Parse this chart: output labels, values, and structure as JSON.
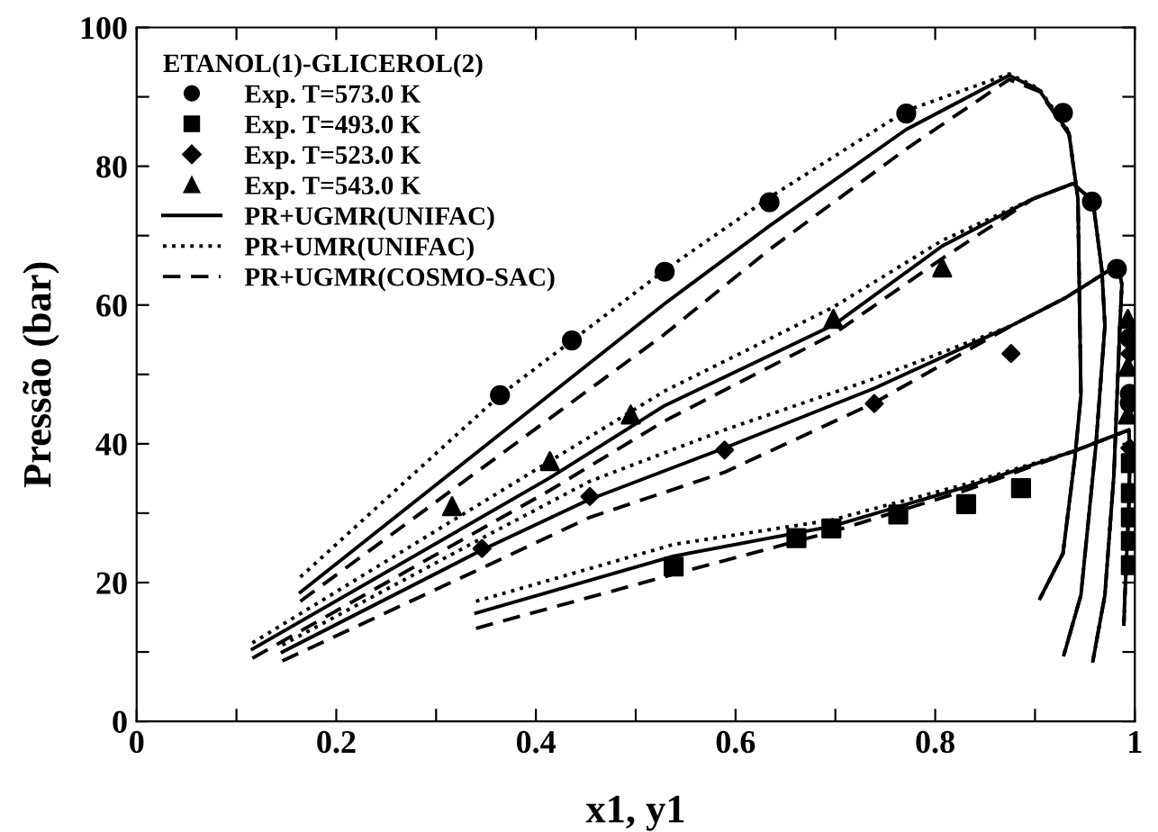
{
  "chart_data": {
    "type": "line",
    "xlabel": "x1, y1",
    "ylabel": "Pressão (bar)",
    "legend_title": "ETANOL(1)-GLICEROL(2)",
    "legend": "top left",
    "grid": false,
    "xlim": [
      0,
      1
    ],
    "ylim": [
      0,
      100
    ],
    "xticks": [
      {
        "value": 0,
        "label": "0"
      },
      {
        "value": 0.1,
        "label": null
      },
      0.2,
      {
        "value": 0.3,
        "label": null
      },
      0.4,
      {
        "value": 0.5,
        "label": null
      },
      0.6,
      {
        "value": 0.7,
        "label": null
      },
      0.8,
      {
        "value": 0.9,
        "label": null
      },
      {
        "value": 1,
        "label": "1"
      }
    ],
    "yticks": [
      0,
      {
        "value": 10,
        "label": null
      },
      20,
      {
        "value": 30,
        "label": null
      },
      40,
      {
        "value": 50,
        "label": null
      },
      60,
      {
        "value": 70,
        "label": null
      },
      80,
      {
        "value": 90,
        "label": null
      },
      100
    ],
    "series": [
      {
        "name": "Exp. T=573.0 K",
        "type": "scatter",
        "marker": "circle",
        "color": "#000000",
        "x": [
          0.364,
          0.436,
          0.529,
          0.634,
          0.771,
          0.928,
          0.957,
          0.982,
          0.995,
          0.995,
          0.995
        ],
        "values": [
          47.0,
          54.9,
          64.8,
          74.8,
          87.6,
          87.7,
          74.9,
          65.2,
          55.2,
          47.2,
          45.9
        ]
      },
      {
        "name": "Exp. T=493.0 K",
        "type": "scatter",
        "marker": "square",
        "color": "#000000",
        "x": [
          0.538,
          0.661,
          0.696,
          0.763,
          0.831,
          0.886,
          0.996,
          0.996,
          0.996,
          0.996,
          0.996
        ],
        "values": [
          22.3,
          26.4,
          27.8,
          29.8,
          31.3,
          33.6,
          37.2,
          32.9,
          29.4,
          26.0,
          22.5
        ]
      },
      {
        "name": "Exp. T=523.0 K",
        "type": "scatter",
        "marker": "diamond",
        "color": "#000000",
        "x": [
          0.346,
          0.454,
          0.589,
          0.739,
          0.876,
          0.995,
          0.995
        ],
        "values": [
          24.9,
          32.4,
          39.1,
          45.8,
          53.0,
          53.0,
          39.4
        ]
      },
      {
        "name": "Exp. T=543.0 K",
        "type": "scatter",
        "marker": "triangle",
        "color": "#000000",
        "x": [
          0.316,
          0.414,
          0.495,
          0.698,
          0.807,
          0.993,
          0.993,
          0.993
        ],
        "values": [
          31.0,
          37.5,
          44.2,
          58.0,
          65.4,
          58.0,
          51.1,
          44.2
        ]
      },
      {
        "name": "PR+UGMR(UNIFAC)",
        "line_style": "solid",
        "color": "#000000",
        "x": [
          0.164,
          0.529,
          0.634,
          0.771,
          0.874,
          0.904,
          0.934,
          0.943,
          0.946,
          0.94,
          0.928,
          0.905
        ],
        "values": [
          18.6,
          60.2,
          71.4,
          85.3,
          93.1,
          91.0,
          84.8,
          75.3,
          47,
          38,
          24.2,
          17.7
        ]
      },
      {
        "name": "PR+UMR(UNIFAC)",
        "line_style": "dotted",
        "color": "#000000",
        "x": [
          0.164,
          0.364,
          0.529,
          0.634,
          0.771,
          0.874,
          0.904,
          0.934,
          0.943,
          0.946,
          0.94,
          0.928,
          0.905
        ],
        "values": [
          20.8,
          47.0,
          65.0,
          75.5,
          88.0,
          93.3,
          91.2,
          85.0,
          75.3,
          47,
          38,
          24.2,
          17.7
        ]
      },
      {
        "name": "PR+UGMR(COSMO-SAC)",
        "line_style": "dashed",
        "color": "#000000",
        "x": [
          0.164,
          0.529,
          0.634,
          0.771,
          0.874,
          0.904,
          0.934,
          0.943,
          0.946,
          0.94,
          0.928,
          0.905
        ],
        "values": [
          17.3,
          55.8,
          68.0,
          82.5,
          92.5,
          90.8,
          84.6,
          75.3,
          47,
          38,
          24.2,
          17.7
        ]
      },
      {
        "line_style": "solid",
        "color": "#000000",
        "x": [
          0.116,
          0.414,
          0.529,
          0.698,
          0.807,
          0.898,
          0.938,
          0.958,
          0.967,
          0.97,
          0.961,
          0.946,
          0.929
        ],
        "values": [
          10.4,
          35.1,
          45.5,
          57.1,
          68.5,
          75.3,
          77.5,
          75.0,
          65.0,
          57.0,
          39.8,
          18.2,
          9.6
        ]
      },
      {
        "line_style": "dotted",
        "color": "#000000",
        "x": [
          0.116,
          0.414,
          0.529,
          0.698,
          0.807,
          0.898,
          0.938,
          0.958,
          0.967,
          0.97,
          0.961,
          0.946,
          0.929
        ],
        "values": [
          11.3,
          37.5,
          47.6,
          59.7,
          69.3,
          75.3,
          77.5,
          75.0,
          65.0,
          57.0,
          39.8,
          18.2,
          9.6
        ]
      },
      {
        "line_style": "dashed",
        "color": "#000000",
        "x": [
          0.116,
          0.414,
          0.529,
          0.698,
          0.807,
          0.898,
          0.938,
          0.958,
          0.967,
          0.97,
          0.961,
          0.946,
          0.929
        ],
        "values": [
          9.1,
          33.3,
          43.3,
          55.8,
          66.7,
          75.3,
          77.5,
          75.0,
          65.0,
          57.0,
          39.8,
          18.2,
          9.6
        ]
      },
      {
        "line_style": "solid",
        "color": "#000000",
        "x": [
          0.146,
          0.346,
          0.454,
          0.589,
          0.739,
          0.876,
          0.93,
          0.983,
          0.987,
          0.985,
          0.979,
          0.97,
          0.958
        ],
        "values": [
          10.0,
          24.7,
          32.0,
          39.4,
          48.0,
          57.0,
          61.0,
          65.8,
          63.0,
          57.0,
          35.5,
          18.2,
          8.7
        ]
      },
      {
        "line_style": "dotted",
        "color": "#000000",
        "x": [
          0.146,
          0.346,
          0.454,
          0.589,
          0.739,
          0.876,
          0.93,
          0.983,
          0.987,
          0.985,
          0.979,
          0.97,
          0.958
        ],
        "values": [
          11.0,
          26.4,
          34.6,
          42.0,
          49.4,
          57.0,
          61.0,
          65.8,
          63.0,
          57.0,
          35.5,
          18.2,
          8.7
        ]
      },
      {
        "line_style": "dashed",
        "color": "#000000",
        "x": [
          0.146,
          0.346,
          0.454,
          0.589,
          0.739,
          0.876,
          0.93,
          0.983,
          0.987,
          0.985,
          0.979,
          0.97,
          0.958
        ],
        "values": [
          8.7,
          22.1,
          29.4,
          35.9,
          45.9,
          57.0,
          61.0,
          65.8,
          63.0,
          57.0,
          35.5,
          18.2,
          8.7
        ]
      },
      {
        "line_style": "solid",
        "color": "#000000",
        "x": [
          0.34,
          0.538,
          0.696,
          0.831,
          0.94,
          0.994,
          0.995,
          0.994,
          0.99,
          0.989
        ],
        "values": [
          15.6,
          23.8,
          28.1,
          33.8,
          39.0,
          42.0,
          38.0,
          31.0,
          18.0,
          14.0
        ]
      },
      {
        "line_style": "dotted",
        "color": "#000000",
        "x": [
          0.34,
          0.538,
          0.696,
          0.831,
          0.94,
          0.994,
          0.995,
          0.994,
          0.99,
          0.989
        ],
        "values": [
          17.3,
          25.5,
          29.0,
          34.2,
          39.0,
          42.0,
          38.0,
          31.0,
          18.0,
          14.0
        ]
      },
      {
        "line_style": "dashed",
        "color": "#000000",
        "x": [
          0.34,
          0.538,
          0.696,
          0.831,
          0.94,
          0.994,
          0.995,
          0.994,
          0.99,
          0.989
        ],
        "values": [
          13.4,
          21.2,
          27.3,
          33.3,
          39.0,
          42.0,
          38.0,
          31.0,
          18.0,
          14.0
        ]
      }
    ]
  }
}
